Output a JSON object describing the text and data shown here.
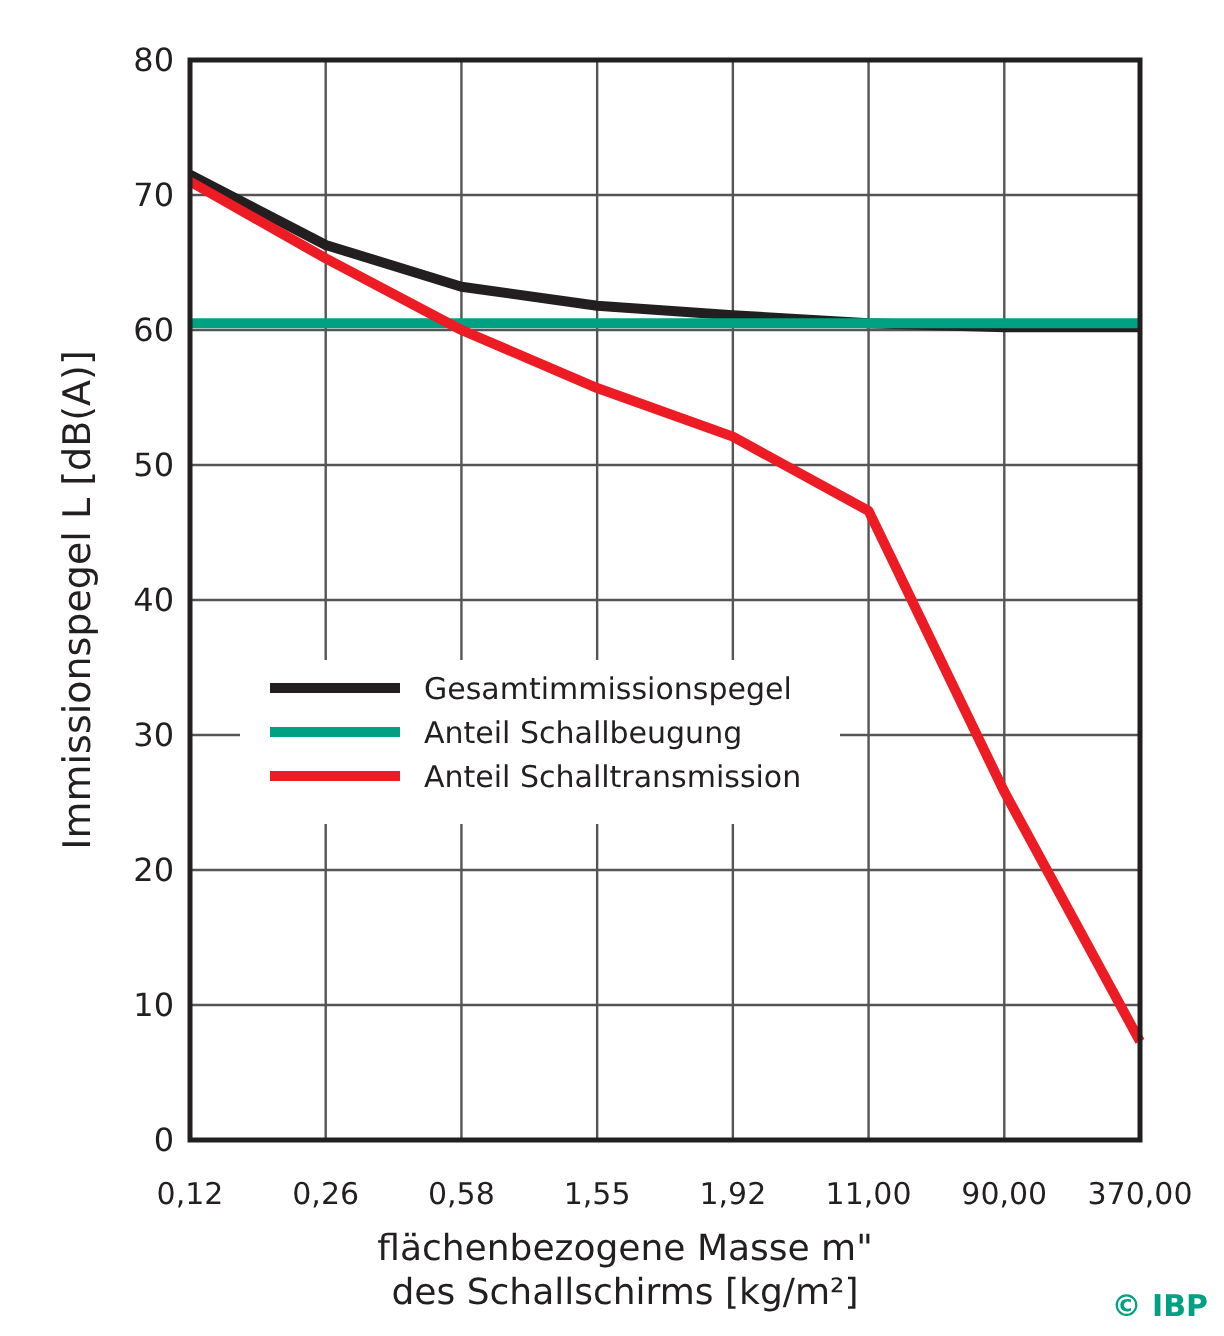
{
  "chart_data": {
    "type": "line",
    "xlabel": "flächenbezogene Masse m\"\ndes Schallschirms [kg/m²]",
    "ylabel": "Immissionspegel L [dB(A)]",
    "categories": [
      "0,12",
      "0,26",
      "0,58",
      "1,55",
      "1,92",
      "11,00",
      "90,00",
      "370,00"
    ],
    "series": [
      {
        "name": "Gesamtimmissionspegel",
        "color": "#231f20",
        "values": [
          71.5,
          66.3,
          63.2,
          61.8,
          61.1,
          60.5,
          60.2,
          60.2
        ]
      },
      {
        "name": "Anteil Schallbeugung",
        "color": "#00a082",
        "values": [
          60.5,
          60.5,
          60.5,
          60.5,
          60.5,
          60.5,
          60.5,
          60.5
        ]
      },
      {
        "name": "Anteil Schalltransmission",
        "color": "#ed1c24",
        "values": [
          71,
          65.3,
          60,
          55.7,
          52.1,
          46.6,
          25.8,
          7.3
        ]
      }
    ],
    "ylim": [
      0,
      80
    ],
    "yticks": [
      0,
      10,
      20,
      30,
      40,
      50,
      60,
      70,
      80
    ],
    "grid": true,
    "legend": "center left",
    "line_style": "solid",
    "marker": "none",
    "annotations": [
      "© IBP"
    ]
  }
}
